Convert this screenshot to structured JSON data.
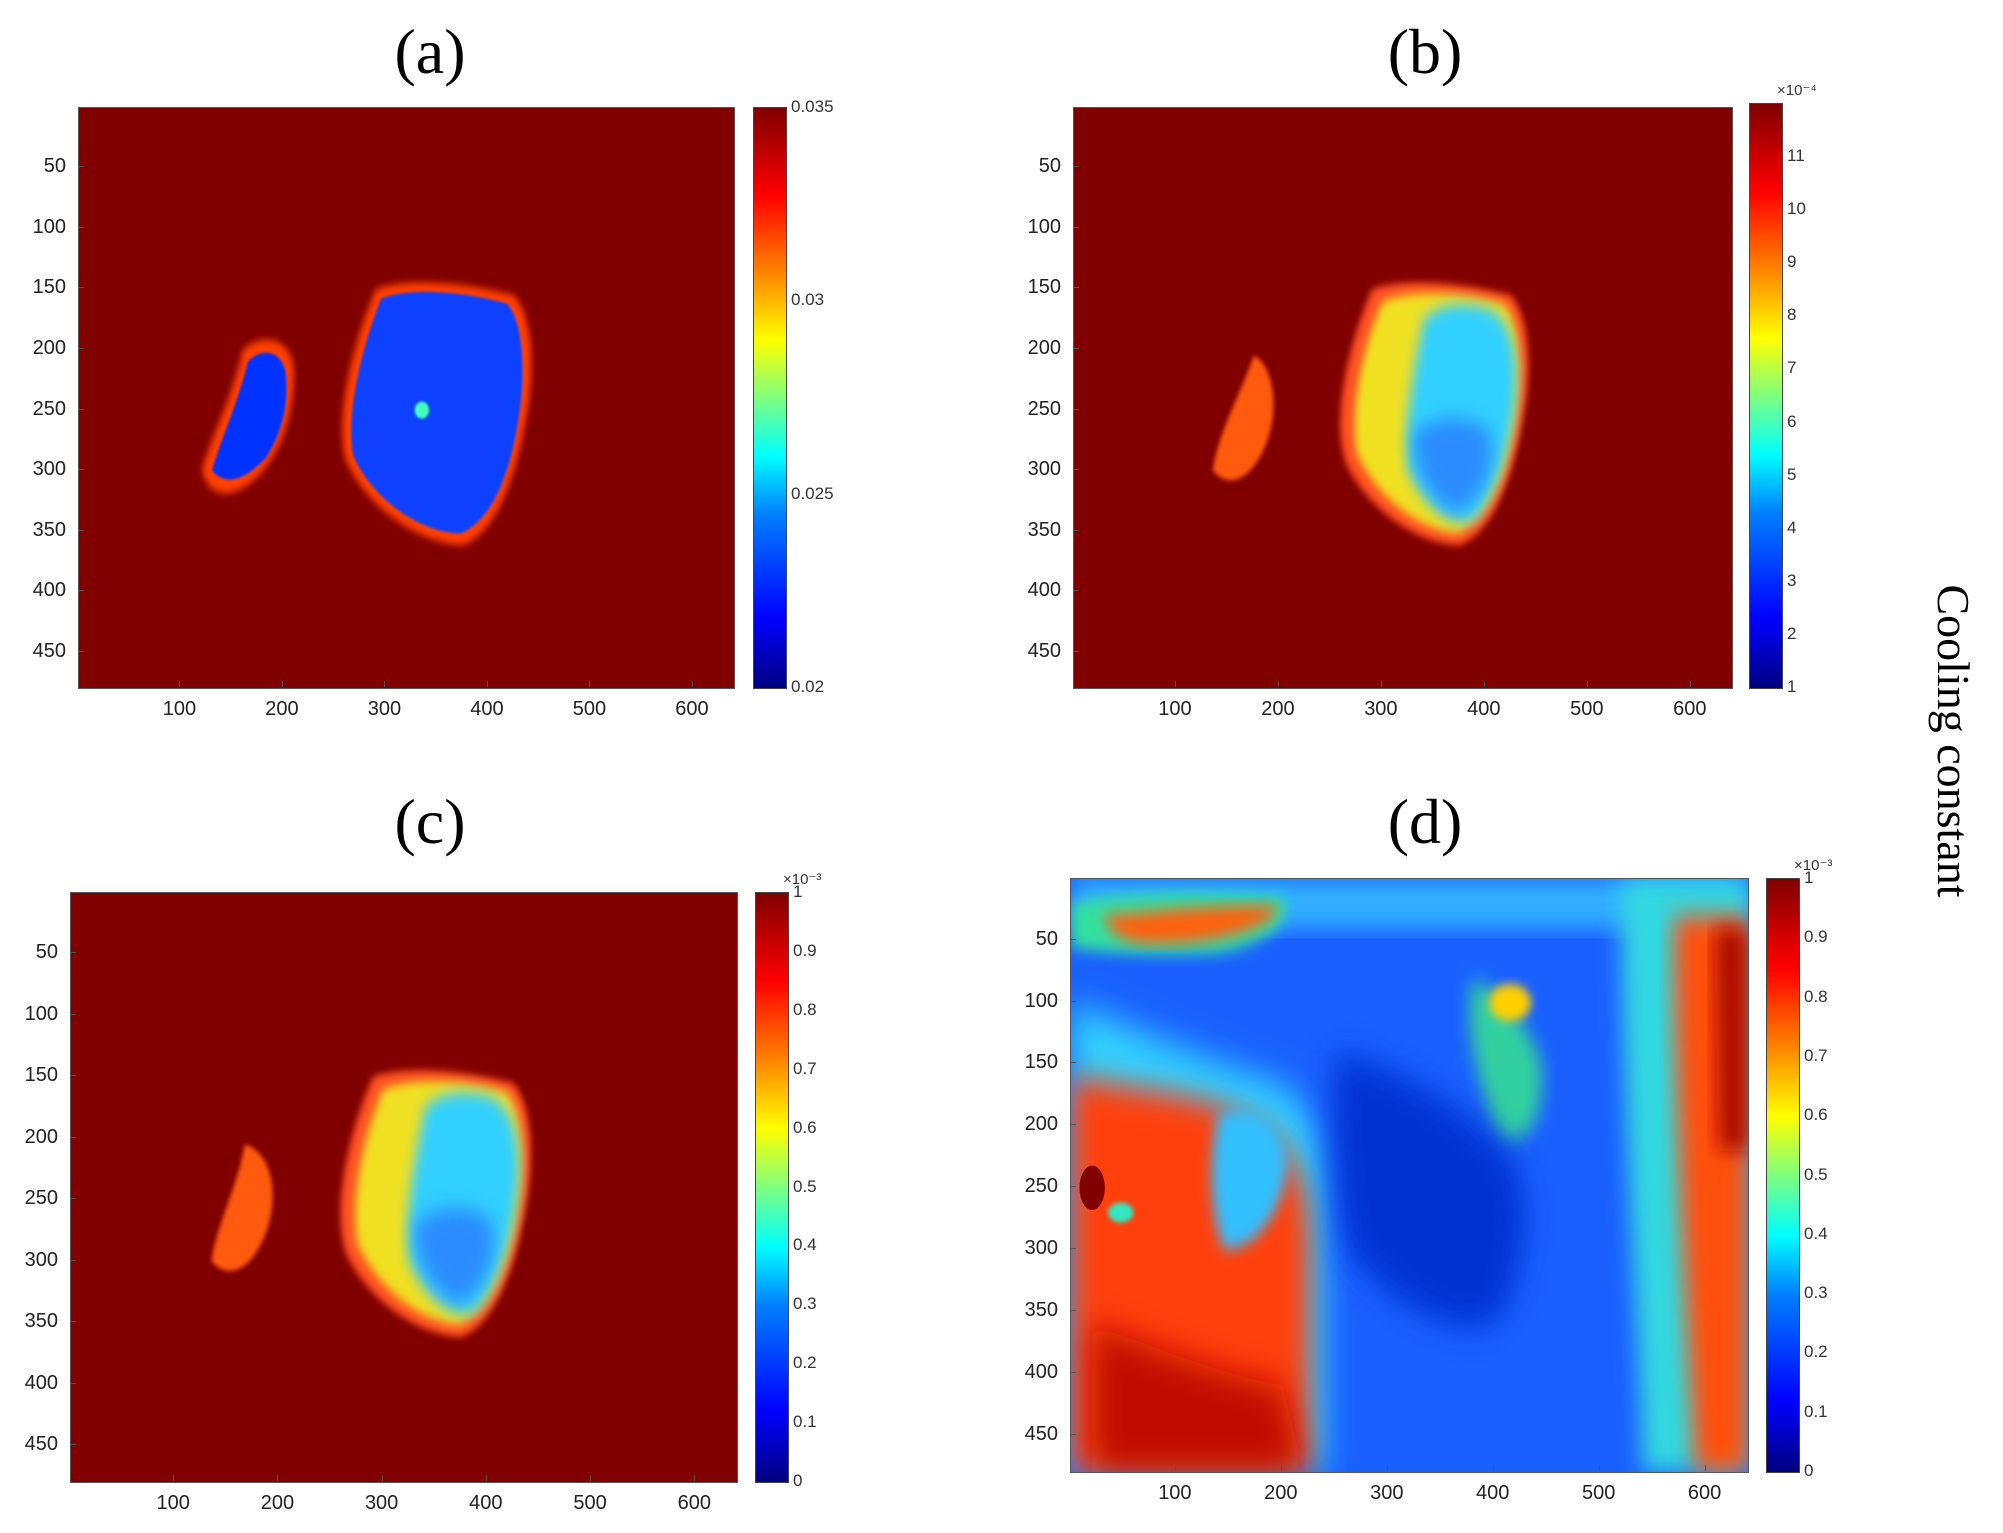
{
  "side_label": "Cooling constant",
  "chart_data": [
    {
      "type": "heatmap",
      "title": "(a)",
      "x_ticks": [
        100,
        200,
        300,
        400,
        500,
        600
      ],
      "y_ticks": [
        50,
        100,
        150,
        200,
        250,
        300,
        350,
        400,
        450
      ],
      "xlim": [
        1,
        640
      ],
      "ylim": [
        1,
        480
      ],
      "colorbar": {
        "ticks": [
          "0.02",
          "0.025",
          "0.03",
          "0.035"
        ],
        "tick_values": [
          0.02,
          0.025,
          0.03,
          0.035
        ],
        "range": [
          0.02,
          0.035
        ],
        "exponent": ""
      },
      "colormap": "jet",
      "background_value": 0.035
    },
    {
      "type": "heatmap",
      "title": "(b)",
      "x_ticks": [
        100,
        200,
        300,
        400,
        500,
        600
      ],
      "y_ticks": [
        50,
        100,
        150,
        200,
        250,
        300,
        350,
        400,
        450
      ],
      "xlim": [
        1,
        640
      ],
      "ylim": [
        1,
        480
      ],
      "colorbar": {
        "ticks": [
          "1",
          "2",
          "3",
          "4",
          "5",
          "6",
          "7",
          "8",
          "9",
          "10",
          "11"
        ],
        "tick_values": [
          1,
          2,
          3,
          4,
          5,
          6,
          7,
          8,
          9,
          10,
          11
        ],
        "range": [
          1,
          12
        ],
        "exponent": "×10⁻⁴"
      },
      "colormap": "jet",
      "background_value": 12
    },
    {
      "type": "heatmap",
      "title": "(c)",
      "x_ticks": [
        100,
        200,
        300,
        400,
        500,
        600
      ],
      "y_ticks": [
        50,
        100,
        150,
        200,
        250,
        300,
        350,
        400,
        450
      ],
      "xlim": [
        1,
        640
      ],
      "ylim": [
        1,
        480
      ],
      "colorbar": {
        "ticks": [
          "0",
          "0.1",
          "0.2",
          "0.3",
          "0.4",
          "0.5",
          "0.6",
          "0.7",
          "0.8",
          "0.9",
          "1"
        ],
        "tick_values": [
          0,
          0.1,
          0.2,
          0.3,
          0.4,
          0.5,
          0.6,
          0.7,
          0.8,
          0.9,
          1
        ],
        "range": [
          0,
          1
        ],
        "exponent": "×10⁻³"
      },
      "colormap": "jet",
      "background_value": 1
    },
    {
      "type": "heatmap",
      "title": "(d)",
      "x_ticks": [
        100,
        200,
        300,
        400,
        500,
        600
      ],
      "y_ticks": [
        50,
        100,
        150,
        200,
        250,
        300,
        350,
        400,
        450
      ],
      "xlim": [
        1,
        640
      ],
      "ylim": [
        1,
        480
      ],
      "colorbar": {
        "ticks": [
          "0",
          "0.1",
          "0.2",
          "0.3",
          "0.4",
          "0.5",
          "0.6",
          "0.7",
          "0.8",
          "0.9",
          "1"
        ],
        "tick_values": [
          0,
          0.1,
          0.2,
          0.3,
          0.4,
          0.5,
          0.6,
          0.7,
          0.8,
          0.9,
          1
        ],
        "range": [
          0,
          1
        ],
        "exponent": "×10⁻³"
      },
      "colormap": "jet"
    }
  ]
}
